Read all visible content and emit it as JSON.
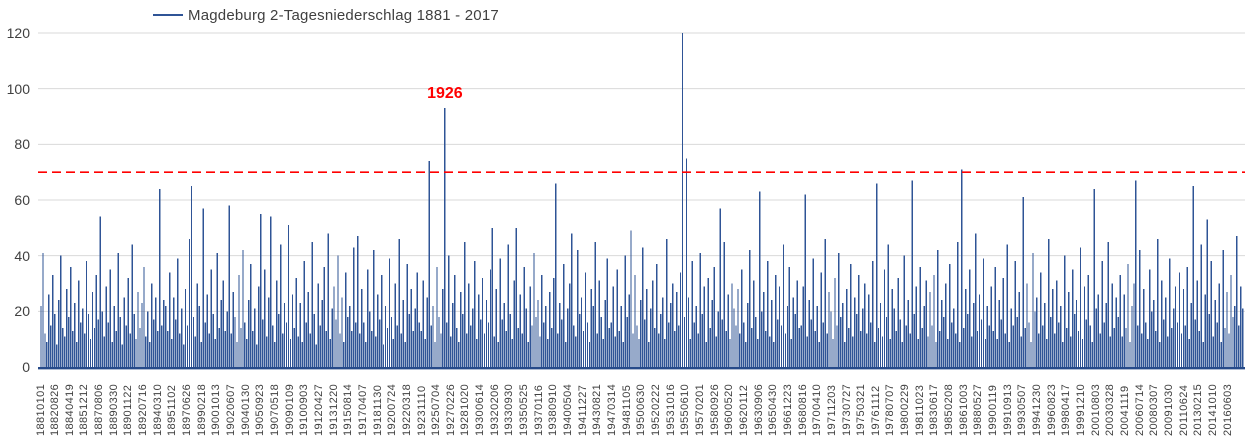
{
  "colors": {
    "series": "#2F5496",
    "gridline": "#D9D9D9",
    "axis_line": "#264A89",
    "threshold": "#FF0000",
    "annotation": "#FF0000",
    "tick_text": "#404040",
    "background": "#FFFFFF"
  },
  "chart_data": {
    "type": "line",
    "series_name": "Magdeburg 2-Tagesniederschlag 1881 - 2017",
    "series_color": "#2F5496",
    "ylim": [
      0,
      120
    ],
    "yticks": [
      0,
      20,
      40,
      60,
      80,
      100,
      120
    ],
    "grid": "horizontal",
    "legend_position": "top",
    "threshold_line": {
      "value": 70,
      "color": "#FF0000",
      "style": "dashed"
    },
    "annotation": {
      "text": "1926",
      "value": 93,
      "x_index": 204
    },
    "x_tick_labels": [
      "18810101",
      "18820826",
      "18840419",
      "18851212",
      "18870806",
      "18890330",
      "18901122",
      "18920716",
      "18940310",
      "18951102",
      "18970626",
      "18990218",
      "19001013",
      "19020607",
      "19040130",
      "19050923",
      "19070518",
      "19090109",
      "19100903",
      "19120427",
      "19131220",
      "19150814",
      "19170407",
      "19181130",
      "19200724",
      "19220318",
      "19231110",
      "19250704",
      "19270226",
      "19281020",
      "19300614",
      "19320206",
      "19330930",
      "19350525",
      "19370116",
      "19380910",
      "19400504",
      "19411227",
      "19430821",
      "19470314",
      "19481105",
      "19500630",
      "19520222",
      "19531016",
      "19550610",
      "19570201",
      "19580926",
      "19600520",
      "19620112",
      "19630906",
      "19650430",
      "19661223",
      "19680816",
      "19700410",
      "19711203",
      "19730727",
      "19750321",
      "19761112",
      "19780707",
      "19800229",
      "19811023",
      "19830617",
      "19850208",
      "19861003",
      "19880527",
      "19900119",
      "19910913",
      "19930507",
      "19941230",
      "19960823",
      "19980417",
      "19991210",
      "20010803",
      "20030328",
      "20041119",
      "20060714",
      "20080307",
      "20091030",
      "20110624",
      "20130215",
      "20141010",
      "20160603"
    ],
    "values": [
      22,
      41,
      12,
      9,
      26,
      15,
      33,
      19,
      8,
      24,
      40,
      14,
      11,
      28,
      18,
      36,
      13,
      23,
      9,
      31,
      16,
      21,
      12,
      38,
      19,
      10,
      27,
      14,
      33,
      17,
      54,
      20,
      11,
      29,
      16,
      35,
      9,
      22,
      13,
      41,
      18,
      8,
      25,
      15,
      32,
      12,
      44,
      19,
      10,
      27,
      14,
      23,
      36,
      11,
      20,
      9,
      30,
      17,
      25,
      13,
      64,
      15,
      24,
      22,
      13,
      34,
      10,
      25,
      17,
      39,
      12,
      21,
      8,
      28,
      15,
      46,
      65,
      18,
      11,
      30,
      22,
      9,
      57,
      16,
      26,
      12,
      35,
      19,
      10,
      41,
      14,
      24,
      31,
      13,
      20,
      58,
      12,
      27,
      18,
      9,
      33,
      14,
      42,
      16,
      10,
      24,
      37,
      13,
      21,
      8,
      29,
      55,
      17,
      35,
      11,
      25,
      54,
      15,
      9,
      31,
      19,
      44,
      12,
      23,
      16,
      51,
      10,
      26,
      14,
      32,
      11,
      23,
      9,
      38,
      16,
      27,
      12,
      45,
      19,
      8,
      30,
      15,
      24,
      36,
      13,
      48,
      10,
      21,
      29,
      17,
      40,
      12,
      25,
      9,
      34,
      18,
      22,
      13,
      43,
      16,
      47,
      12,
      28,
      16,
      9,
      35,
      20,
      13,
      42,
      11,
      26,
      17,
      33,
      8,
      22,
      14,
      39,
      18,
      10,
      30,
      15,
      46,
      12,
      24,
      9,
      37,
      19,
      28,
      13,
      21,
      34,
      16,
      13,
      31,
      10,
      25,
      74,
      15,
      22,
      9,
      36,
      18,
      12,
      28,
      93,
      16,
      40,
      11,
      23,
      33,
      14,
      9,
      27,
      19,
      45,
      12,
      30,
      15,
      21,
      38,
      10,
      26,
      17,
      32,
      12,
      24,
      16,
      35,
      50,
      11,
      28,
      9,
      39,
      17,
      23,
      13,
      44,
      19,
      10,
      31,
      50,
      14,
      26,
      12,
      36,
      21,
      9,
      29,
      15,
      41,
      18,
      24,
      11,
      33,
      16,
      22,
      10,
      27,
      14,
      32,
      66,
      12,
      23,
      17,
      37,
      9,
      21,
      30,
      48,
      15,
      11,
      42,
      19,
      25,
      13,
      34,
      16,
      9,
      28,
      22,
      45,
      12,
      31,
      18,
      10,
      24,
      39,
      14,
      16,
      29,
      11,
      35,
      13,
      22,
      9,
      40,
      18,
      26,
      49,
      12,
      33,
      15,
      10,
      24,
      43,
      17,
      28,
      9,
      21,
      31,
      14,
      37,
      12,
      19,
      25,
      10,
      46,
      16,
      23,
      30,
      13,
      27,
      15,
      34,
      120,
      18,
      75,
      25,
      10,
      38,
      16,
      22,
      12,
      41,
      19,
      29,
      9,
      32,
      14,
      24,
      36,
      11,
      20,
      57,
      17,
      45,
      13,
      26,
      10,
      30,
      21,
      15,
      28,
      12,
      35,
      16,
      9,
      23,
      42,
      14,
      31,
      18,
      10,
      63,
      20,
      27,
      13,
      38,
      11,
      24,
      9,
      33,
      17,
      29,
      15,
      44,
      12,
      22,
      36,
      10,
      25,
      19,
      31,
      14,
      15,
      29,
      62,
      11,
      24,
      17,
      39,
      13,
      22,
      9,
      34,
      16,
      46,
      12,
      27,
      20,
      10,
      32,
      15,
      41,
      18,
      23,
      9,
      28,
      14,
      37,
      11,
      25,
      19,
      33,
      13,
      21,
      30,
      12,
      26,
      16,
      38,
      9,
      66,
      14,
      23,
      11,
      35,
      18,
      44,
      10,
      28,
      21,
      13,
      32,
      17,
      9,
      40,
      15,
      24,
      12,
      67,
      19,
      29,
      10,
      36,
      14,
      22,
      31,
      11,
      27,
      15,
      33,
      9,
      42,
      13,
      24,
      18,
      30,
      10,
      37,
      16,
      21,
      12,
      45,
      9,
      71,
      14,
      28,
      19,
      35,
      11,
      23,
      48,
      13,
      26,
      17,
      39,
      10,
      22,
      15,
      29,
      13,
      36,
      10,
      24,
      17,
      32,
      12,
      44,
      9,
      21,
      15,
      38,
      18,
      27,
      11,
      61,
      14,
      30,
      16,
      9,
      41,
      20,
      25,
      12,
      34,
      15,
      23,
      10,
      46,
      18,
      28,
      12,
      31,
      16,
      22,
      9,
      40,
      14,
      27,
      11,
      35,
      19,
      24,
      13,
      43,
      10,
      29,
      17,
      33,
      15,
      9,
      64,
      21,
      26,
      12,
      38,
      16,
      23,
      45,
      11,
      30,
      14,
      25,
      18,
      33,
      11,
      26,
      14,
      37,
      9,
      22,
      30,
      67,
      15,
      42,
      12,
      28,
      16,
      10,
      35,
      20,
      24,
      13,
      46,
      9,
      31,
      17,
      25,
      11,
      39,
      14,
      21,
      29,
      16,
      34,
      12,
      28,
      15,
      36,
      10,
      23,
      65,
      17,
      31,
      13,
      44,
      9,
      26,
      53,
      19,
      38,
      11,
      24,
      16,
      30,
      9,
      42,
      14,
      27,
      12,
      33,
      18,
      22,
      47,
      15,
      29,
      21
    ]
  }
}
